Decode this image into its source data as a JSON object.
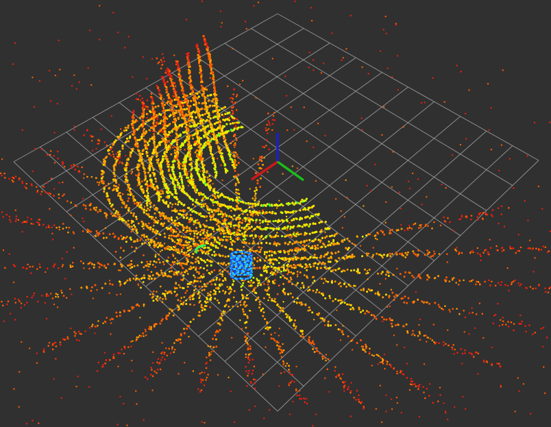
{
  "viewport": {
    "background": "#303030",
    "grid_color": "#a0a0a4",
    "grid_cells": 10
  },
  "axes": {
    "x_color": "#d01818",
    "y_color": "#18c018",
    "z_color": "#1820c8"
  },
  "point_cloud": {
    "colormap": [
      "#0020ff",
      "#00b0ff",
      "#30ff50",
      "#c8ff00",
      "#ffe000",
      "#ff9a00",
      "#ff5a00",
      "#e82010"
    ],
    "near_color": "#ffe000",
    "mid_color": "#ff9a00",
    "far_color": "#e83c10",
    "object_colors": [
      "#1040ff",
      "#30a0ff",
      "#20d8ff"
    ]
  }
}
